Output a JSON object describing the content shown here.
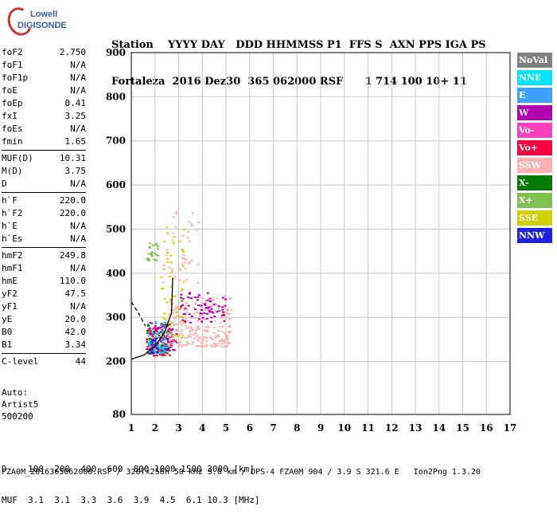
{
  "logo": {
    "line1": "Lowell",
    "line2": "DIGISONDE"
  },
  "header": {
    "labels_line": "Station    YYYY DAY   DDD HHMMSS P1  FFS S  AXN PPS IGA PS",
    "values_line": "Fortaleza  2016 Dez30  365 062000 RSF      1 714 100 10+ 11"
  },
  "params": [
    [
      [
        "foF2",
        "2.750"
      ],
      [
        "foF1",
        "N/A"
      ],
      [
        "foF1p",
        "N/A"
      ],
      [
        "foE",
        "N/A"
      ],
      [
        "foEp",
        "0.41"
      ],
      [
        "fxI",
        "3.25"
      ],
      [
        "foEs",
        "N/A"
      ],
      [
        "fmin",
        "1.65"
      ]
    ],
    [
      [
        "MUF(D)",
        "10.31"
      ],
      [
        "M(D)",
        "3.75"
      ],
      [
        "D",
        "N/A"
      ]
    ],
    [
      [
        "h`F",
        "220.0"
      ],
      [
        "h`F2",
        "220.0"
      ],
      [
        "h`E",
        "N/A"
      ],
      [
        "h`Es",
        "N/A"
      ]
    ],
    [
      [
        "hmF2",
        "249.8"
      ],
      [
        "hmF1",
        "N/A"
      ],
      [
        "hmE",
        "110.0"
      ],
      [
        "yF2",
        "47.5"
      ],
      [
        "yF1",
        "N/A"
      ],
      [
        "yE",
        "20.0"
      ],
      [
        "B0",
        "42.0"
      ],
      [
        "B1",
        "3.34"
      ]
    ],
    [
      [
        "C-level",
        "44"
      ]
    ]
  ],
  "auto": {
    "line1": "Auto:",
    "line2": "Artist5",
    "line3": "500200"
  },
  "footer": {
    "d_line": "D    100  200  400  600  800 1000 1500 3000 [km]",
    "muf_line": "MUF  3.1  3.1  3.3  3.6  3.9  4.5  6.1 10.3 [MHz]",
    "file_line": "FZA0M_2016365062000.RSF / 320fx256h 50 kHz 5.0 km / DPS-4 FZA0M 904 / 3.9 S 321.6 E   Ion2Png 1.3.20"
  },
  "legend": [
    {
      "label": "NoVal",
      "color": "#808080"
    },
    {
      "label": "NNE",
      "color": "#00e5ff"
    },
    {
      "label": "E",
      "color": "#3ca0ff"
    },
    {
      "label": "W",
      "color": "#b000b0"
    },
    {
      "label": "Vo-",
      "color": "#ff40c0"
    },
    {
      "label": "Vo+",
      "color": "#ff0040"
    },
    {
      "label": "SSW",
      "color": "#ffb0b0"
    },
    {
      "label": "X-",
      "color": "#007a00"
    },
    {
      "label": "X+",
      "color": "#80c050"
    },
    {
      "label": "SSE",
      "color": "#d0d000"
    },
    {
      "label": "NNW",
      "color": "#2020e0"
    }
  ],
  "chart_data": {
    "type": "scatter",
    "xlim": [
      1,
      17
    ],
    "ylim": [
      80,
      900
    ],
    "x_ticks": [
      1,
      2,
      3,
      4,
      5,
      6,
      7,
      8,
      9,
      10,
      11,
      12,
      13,
      14,
      15,
      16,
      17
    ],
    "y_ticks": [
      80,
      200,
      300,
      400,
      500,
      600,
      700,
      800,
      900
    ],
    "grid": true,
    "legend_position": "right",
    "clusters": [
      {
        "series": "Vo+",
        "x": [
          1.6,
          2.6
        ],
        "y": [
          215,
          280
        ],
        "n": 120
      },
      {
        "series": "W",
        "x": [
          1.7,
          2.9
        ],
        "y": [
          225,
          290
        ],
        "n": 80
      },
      {
        "series": "SSW",
        "x": [
          2.5,
          5.2
        ],
        "y": [
          235,
          350
        ],
        "n": 260
      },
      {
        "series": "W",
        "x": [
          3.0,
          5.0
        ],
        "y": [
          290,
          360
        ],
        "n": 70
      },
      {
        "series": "SSE",
        "x": [
          2.2,
          3.2
        ],
        "y": [
          250,
          520
        ],
        "n": 60
      },
      {
        "series": "X-",
        "x": [
          1.6,
          2.6
        ],
        "y": [
          220,
          290
        ],
        "n": 40
      },
      {
        "series": "X+",
        "x": [
          1.6,
          2.1
        ],
        "y": [
          430,
          470
        ],
        "n": 25
      },
      {
        "series": "NNE",
        "x": [
          1.6,
          2.4
        ],
        "y": [
          220,
          270
        ],
        "n": 30
      },
      {
        "series": "E",
        "x": [
          1.7,
          2.5
        ],
        "y": [
          230,
          300
        ],
        "n": 25
      },
      {
        "series": "SSW",
        "x": [
          2.3,
          3.8
        ],
        "y": [
          380,
          560
        ],
        "n": 40
      },
      {
        "series": "NNW",
        "x": [
          1.7,
          2.5
        ],
        "y": [
          220,
          260
        ],
        "n": 20
      }
    ],
    "trace": {
      "x": [
        1,
        1.55,
        2.0,
        2.4,
        2.7,
        2.75
      ],
      "y": [
        205,
        215,
        235,
        265,
        310,
        390
      ]
    },
    "trace_branch": {
      "x": [
        1,
        1.3,
        1.6
      ],
      "y": [
        335,
        310,
        280
      ]
    }
  }
}
